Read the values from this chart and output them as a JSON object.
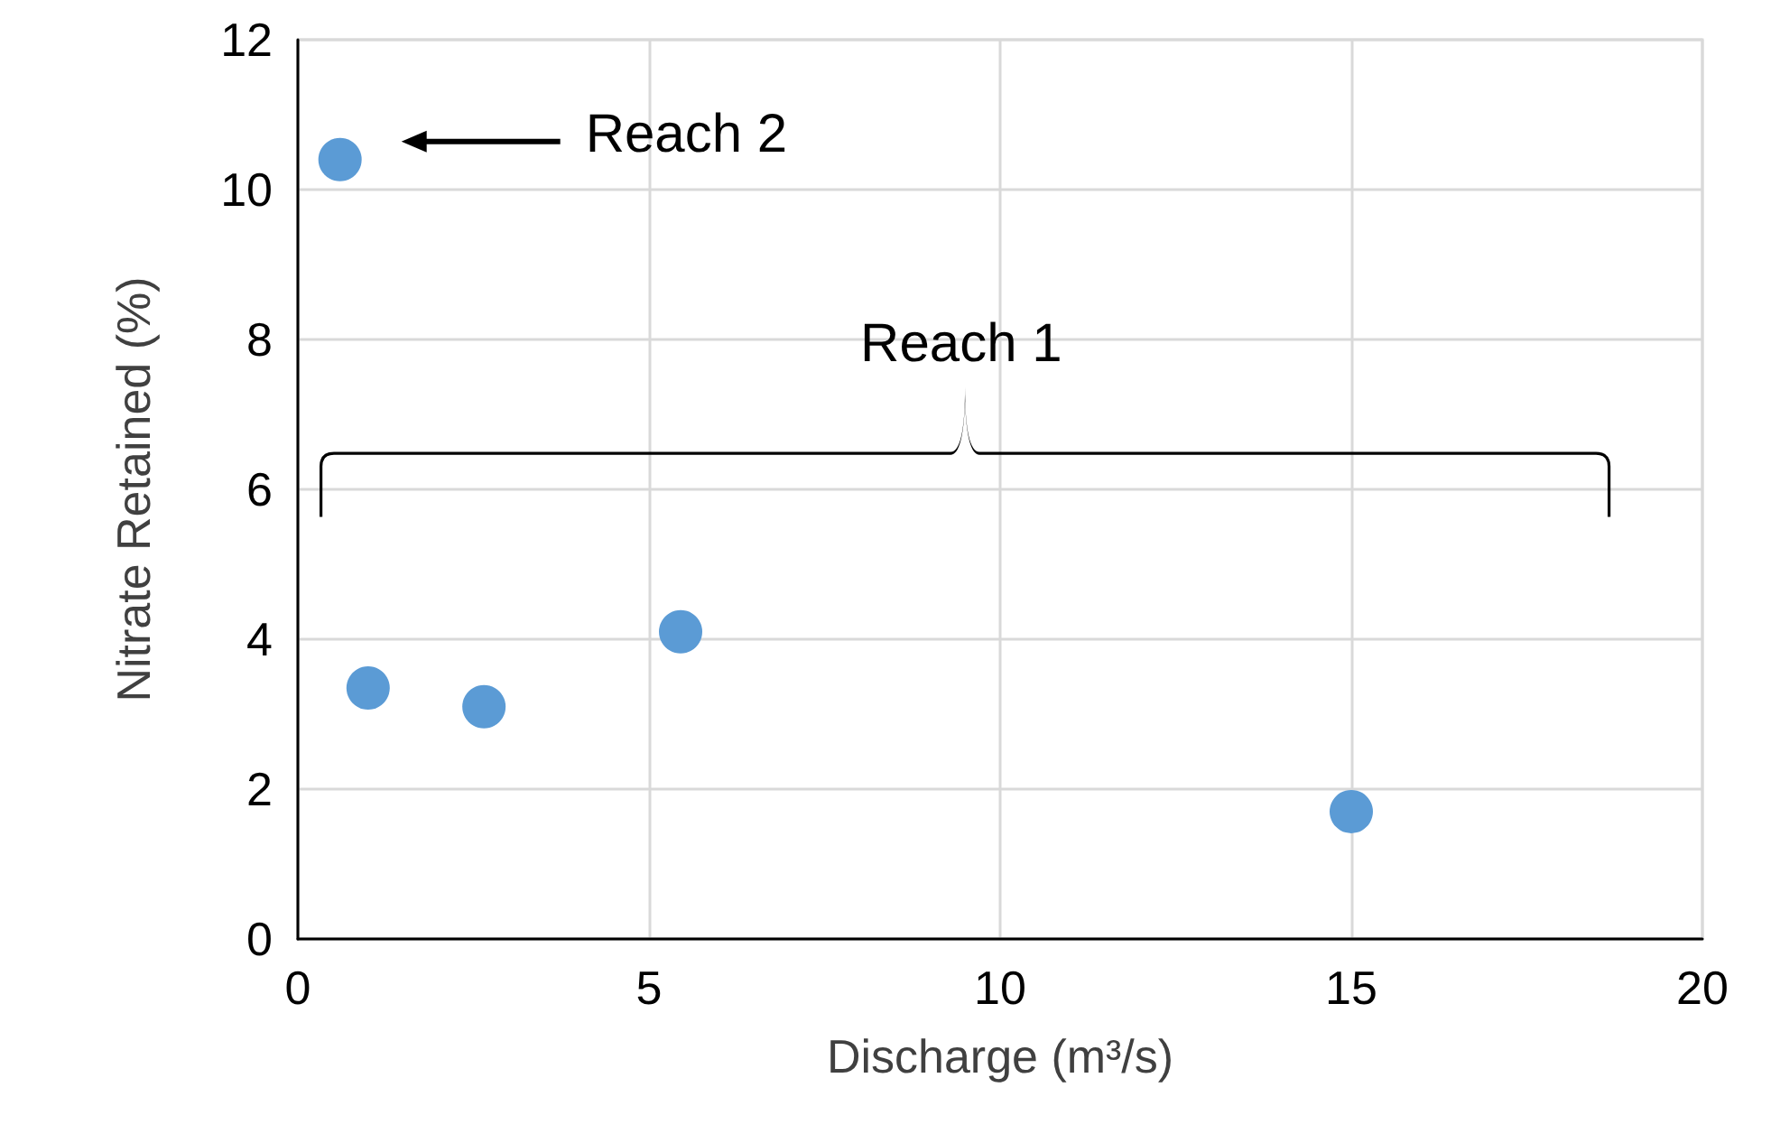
{
  "chart_data": {
    "type": "scatter",
    "xlabel": "Discharge (m³/s)",
    "ylabel": "Nitrate Retained (%)",
    "x": [
      0.6,
      1.0,
      2.65,
      5.45,
      15.0
    ],
    "series": [
      {
        "color": "#5b9bd5",
        "values": [
          10.4,
          3.35,
          3.1,
          4.1,
          1.7
        ]
      }
    ],
    "xlim": [
      0,
      20
    ],
    "xticks": [
      0,
      5,
      10,
      15,
      20
    ],
    "ylim": [
      0,
      12
    ],
    "yticks": [
      0,
      2,
      4,
      6,
      8,
      10,
      12
    ],
    "grid": true,
    "marker": "circle",
    "annotations": [
      "Reach 2",
      "Reach 1"
    ]
  }
}
